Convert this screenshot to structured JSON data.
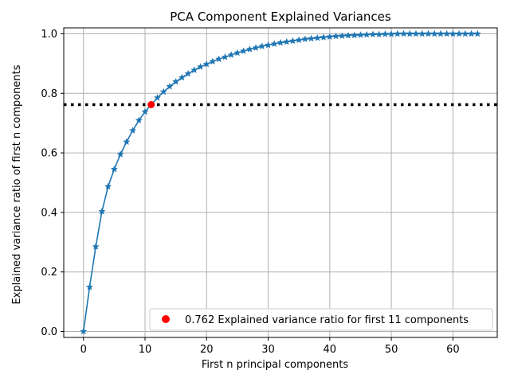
{
  "chart_data": {
    "type": "line",
    "title": "PCA Component Explained Variances",
    "xlabel": "First n principal components",
    "ylabel": "Explained variance ratio of first n components",
    "xlim": [
      -3.2,
      67.2
    ],
    "ylim": [
      -0.02,
      1.02
    ],
    "xticks": [
      0,
      10,
      20,
      30,
      40,
      50,
      60
    ],
    "yticks": [
      0.0,
      0.2,
      0.4,
      0.6,
      0.8,
      1.0
    ],
    "xtick_labels": [
      "0",
      "10",
      "20",
      "30",
      "40",
      "50",
      "60"
    ],
    "ytick_labels": [
      "0.0",
      "0.2",
      "0.4",
      "0.6",
      "0.8",
      "1.0"
    ],
    "grid": true,
    "legend_placement": "lower-right",
    "series": [
      {
        "type": "line",
        "marker": "star",
        "color": "#1f77b4",
        "x": [
          0,
          1,
          2,
          3,
          4,
          5,
          6,
          7,
          8,
          9,
          10,
          11,
          12,
          13,
          14,
          15,
          16,
          17,
          18,
          19,
          20,
          21,
          22,
          23,
          24,
          25,
          26,
          27,
          28,
          29,
          30,
          31,
          32,
          33,
          34,
          35,
          36,
          37,
          38,
          39,
          40,
          41,
          42,
          43,
          44,
          45,
          46,
          47,
          48,
          49,
          50,
          51,
          52,
          53,
          54,
          55,
          56,
          57,
          58,
          59,
          60,
          61,
          62,
          63,
          64
        ],
        "values": [
          0.0,
          0.149,
          0.285,
          0.403,
          0.487,
          0.545,
          0.595,
          0.637,
          0.675,
          0.709,
          0.738,
          0.762,
          0.785,
          0.805,
          0.823,
          0.839,
          0.853,
          0.866,
          0.878,
          0.889,
          0.898,
          0.907,
          0.915,
          0.922,
          0.929,
          0.936,
          0.942,
          0.948,
          0.953,
          0.958,
          0.962,
          0.966,
          0.97,
          0.973,
          0.976,
          0.979,
          0.982,
          0.984,
          0.986,
          0.988,
          0.99,
          0.992,
          0.993,
          0.994,
          0.995,
          0.996,
          0.997,
          0.998,
          0.998,
          0.999,
          0.999,
          1.0,
          1.0,
          1.0,
          1.0,
          1.0,
          1.0,
          1.0,
          1.0,
          1.0,
          1.0,
          1.0,
          1.0,
          1.0,
          1.0
        ]
      },
      {
        "type": "hline",
        "style": "dotted",
        "color": "#000000",
        "y": 0.762
      },
      {
        "type": "scatter",
        "name": "0.762 Explained variance ratio for first 11 components",
        "color": "#ff0000",
        "x": [
          11
        ],
        "values": [
          0.762
        ]
      }
    ],
    "legend": [
      {
        "label": "0.762 Explained variance ratio for first 11 components",
        "color": "#ff0000",
        "marker": "circle"
      }
    ]
  }
}
